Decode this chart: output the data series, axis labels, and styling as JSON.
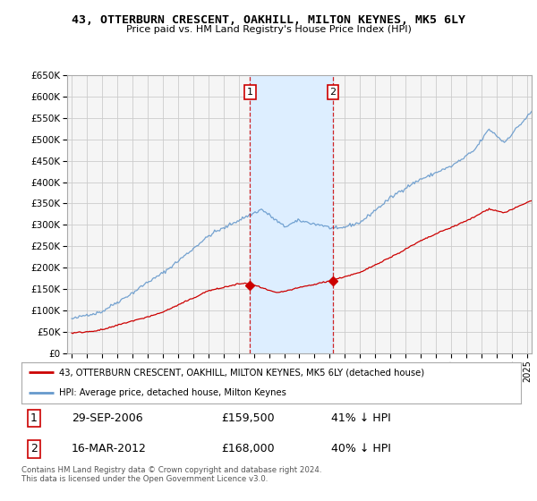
{
  "title": "43, OTTERBURN CRESCENT, OAKHILL, MILTON KEYNES, MK5 6LY",
  "subtitle": "Price paid vs. HM Land Registry's House Price Index (HPI)",
  "ylim": [
    0,
    650000
  ],
  "yticks": [
    0,
    50000,
    100000,
    150000,
    200000,
    250000,
    300000,
    350000,
    400000,
    450000,
    500000,
    550000,
    600000,
    650000
  ],
  "ytick_labels": [
    "£0",
    "£50K",
    "£100K",
    "£150K",
    "£200K",
    "£250K",
    "£300K",
    "£350K",
    "£400K",
    "£450K",
    "£500K",
    "£550K",
    "£600K",
    "£650K"
  ],
  "sale1_date": 2006.75,
  "sale1_price": 159500,
  "sale1_label": "1",
  "sale1_display": "29-SEP-2006",
  "sale1_price_display": "£159,500",
  "sale1_hpi_display": "41% ↓ HPI",
  "sale2_date": 2012.21,
  "sale2_price": 168000,
  "sale2_label": "2",
  "sale2_display": "16-MAR-2012",
  "sale2_price_display": "£168,000",
  "sale2_hpi_display": "40% ↓ HPI",
  "property_color": "#cc0000",
  "hpi_color": "#6699cc",
  "shade_color": "#ddeeff",
  "legend_label_property": "43, OTTERBURN CRESCENT, OAKHILL, MILTON KEYNES, MK5 6LY (detached house)",
  "legend_label_hpi": "HPI: Average price, detached house, Milton Keynes",
  "footer_text": "Contains HM Land Registry data © Crown copyright and database right 2024.\nThis data is licensed under the Open Government Licence v3.0.",
  "background_color": "#ffffff",
  "grid_color": "#cccccc",
  "xlim_left": 1995.0,
  "xlim_right": 2025.3
}
